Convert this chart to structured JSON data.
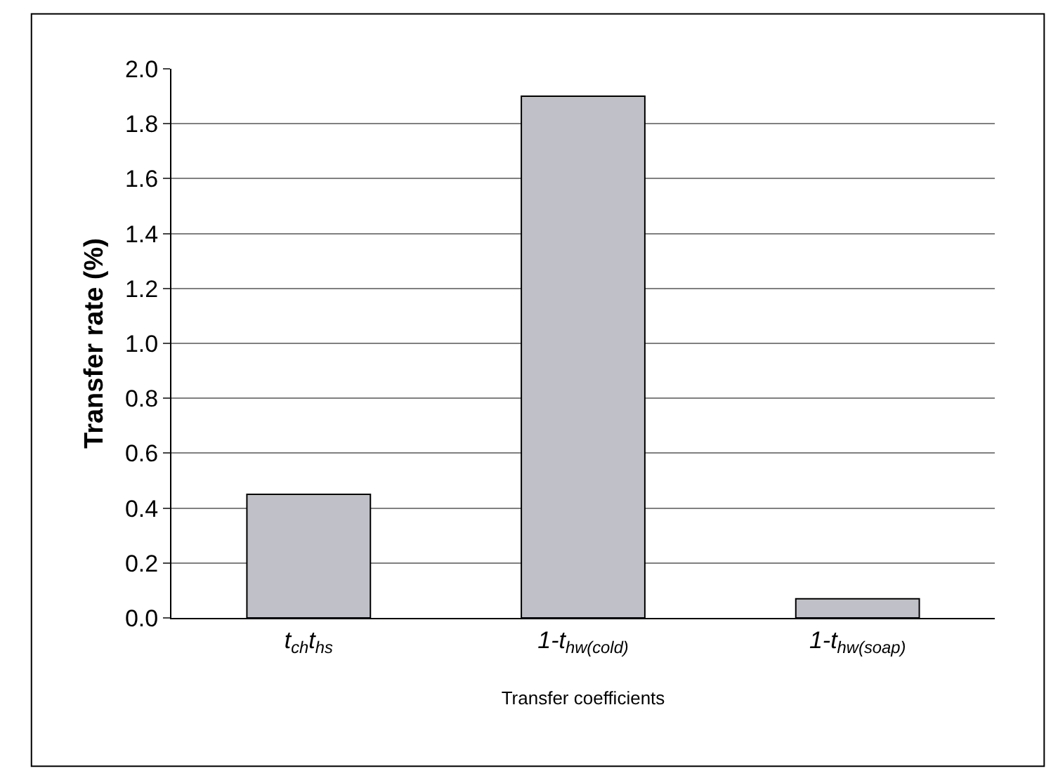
{
  "chart_data": {
    "type": "bar",
    "categories": [
      "t$_{ch}$t$_{hs}$",
      "1-t$_{hw(cold)}$",
      "1-t$_{hw(soap)}$"
    ],
    "values": [
      0.45,
      1.9,
      0.07
    ],
    "color": "#c0c0c8",
    "xlabel": "Transfer coefficients",
    "ylabel": "Transfer rate (%)",
    "ylim": [
      0,
      2.0
    ],
    "yticks": [
      {
        "value": 0,
        "label": "0.0"
      },
      {
        "value": 0.2,
        "label": "0.2"
      },
      {
        "value": 0.4,
        "label": "0.4"
      },
      {
        "value": 0.6,
        "label": "0.6"
      },
      {
        "value": 0.8,
        "label": "0.8"
      },
      {
        "value": 1.0,
        "label": "1.0"
      },
      {
        "value": 1.2,
        "label": "1.2"
      },
      {
        "value": 1.4,
        "label": "1.4"
      },
      {
        "value": 1.6,
        "label": "1.6"
      },
      {
        "value": 1.8,
        "label": "1.8"
      },
      {
        "value": 2.0,
        "label": "2.0"
      }
    ],
    "grid": "y"
  }
}
